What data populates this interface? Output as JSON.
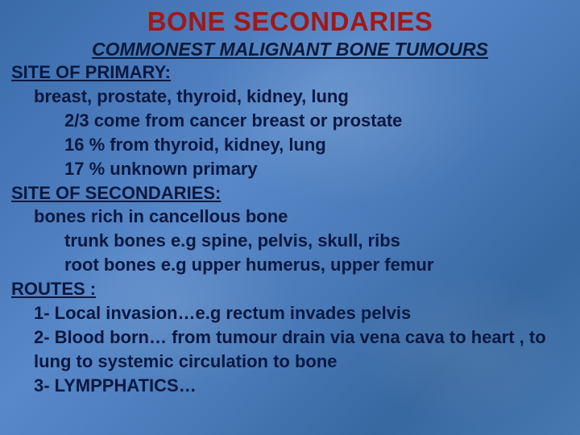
{
  "colors": {
    "title": "#a01818",
    "subtitle": "#0a1a3a",
    "heading": "#0a1840",
    "body": "#0a1840"
  },
  "typography": {
    "title_fontsize": 33,
    "subtitle_fontsize": 23,
    "heading_fontsize": 22,
    "body_fontsize": 22,
    "line_height": 1.36,
    "font_family": "Verdana, Geneva, sans-serif"
  },
  "title": "BONE SECONDARIES",
  "subtitle": "COMMONEST MALIGNANT BONE TUMOURS",
  "sections": [
    {
      "heading": "SITE OF PRIMARY:",
      "lines": [
        {
          "text": "breast, prostate, thyroid, kidney, lung",
          "indent": 1
        },
        {
          "text": "2/3  come from cancer breast or prostate",
          "indent": 2
        },
        {
          "text": "16 %  from thyroid, kidney, lung",
          "indent": 2
        },
        {
          "text": "17 % unknown primary",
          "indent": 2
        }
      ]
    },
    {
      "heading": "SITE OF SECONDARIES:",
      "lines": [
        {
          "text": "bones rich in cancellous bone",
          "indent": 1
        },
        {
          "text": "trunk bones e.g spine, pelvis, skull, ribs",
          "indent": 2
        },
        {
          "text": "root bones e.g upper humerus, upper femur",
          "indent": 2
        }
      ]
    },
    {
      "heading": "ROUTES :",
      "lines": [
        {
          "text": "1- Local invasion…e.g rectum invades pelvis",
          "indent": 1
        },
        {
          "text": "2- Blood born… from tumour drain via vena cava to heart , to lung to systemic  circulation to bone",
          "indent": 1
        },
        {
          "text": "3- LYMPPHATICS…",
          "indent": 1
        }
      ]
    }
  ]
}
